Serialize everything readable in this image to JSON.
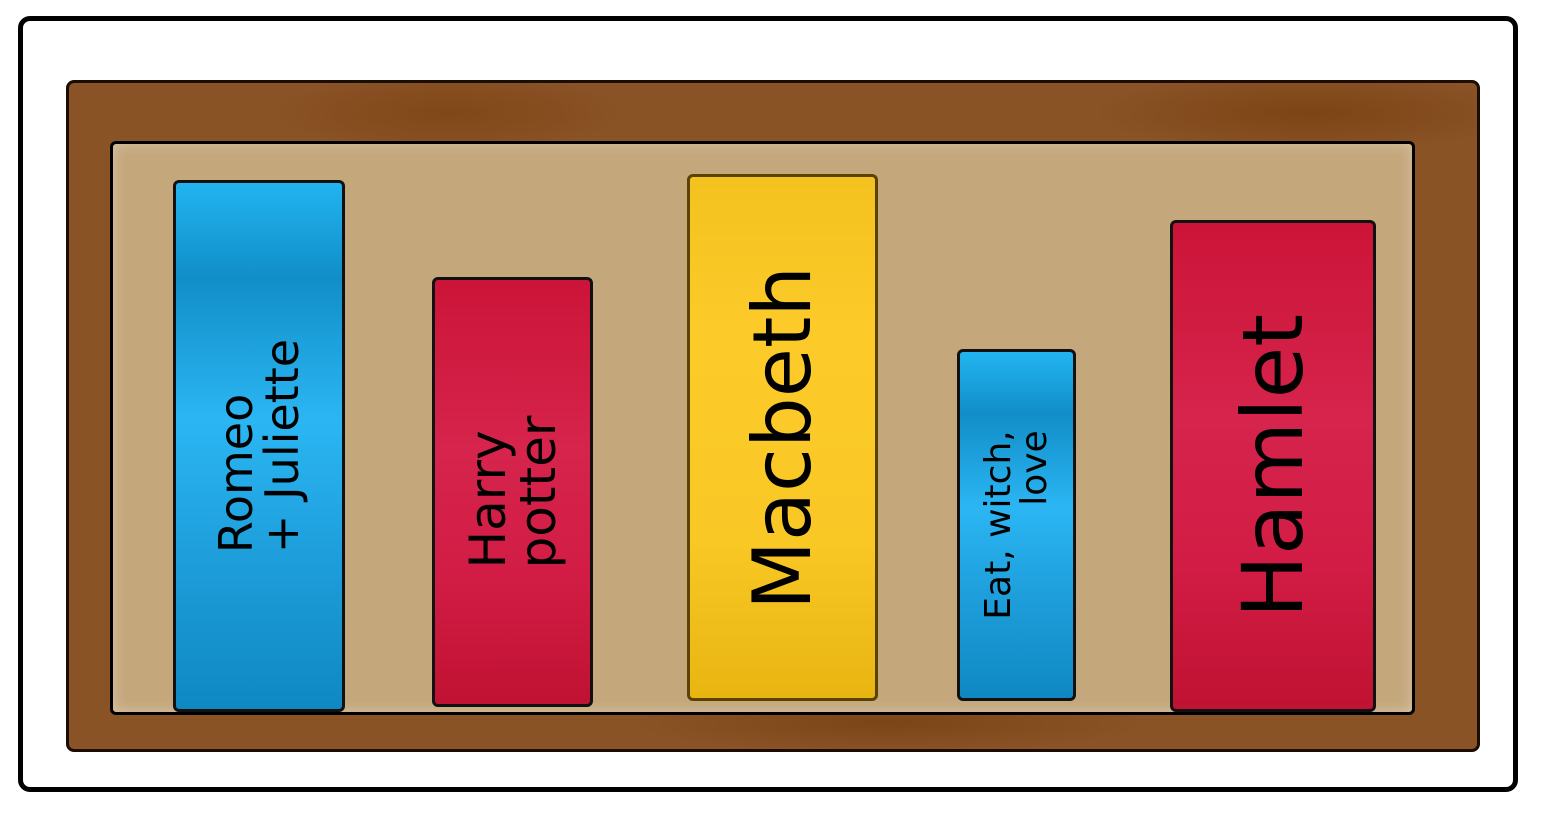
{
  "books": [
    {
      "id": "romeo",
      "lines": [
        "Romeo",
        "+ Juliette"
      ],
      "color": "#23b2ef"
    },
    {
      "id": "harry",
      "lines": [
        "Harry",
        "potter"
      ],
      "color": "#d6214a"
    },
    {
      "id": "macbeth",
      "lines": [
        "Macbeth"
      ],
      "color": "#fbc826"
    },
    {
      "id": "eat",
      "lines": [
        "Eat, witch,",
        "love"
      ],
      "color": "#23b2ef"
    },
    {
      "id": "hamlet",
      "lines": [
        "Hamlet"
      ],
      "color": "#d6214a"
    }
  ],
  "colors": {
    "frame": "#8a5326",
    "shelf_back": "#c4a77b",
    "outline": "#000000"
  }
}
